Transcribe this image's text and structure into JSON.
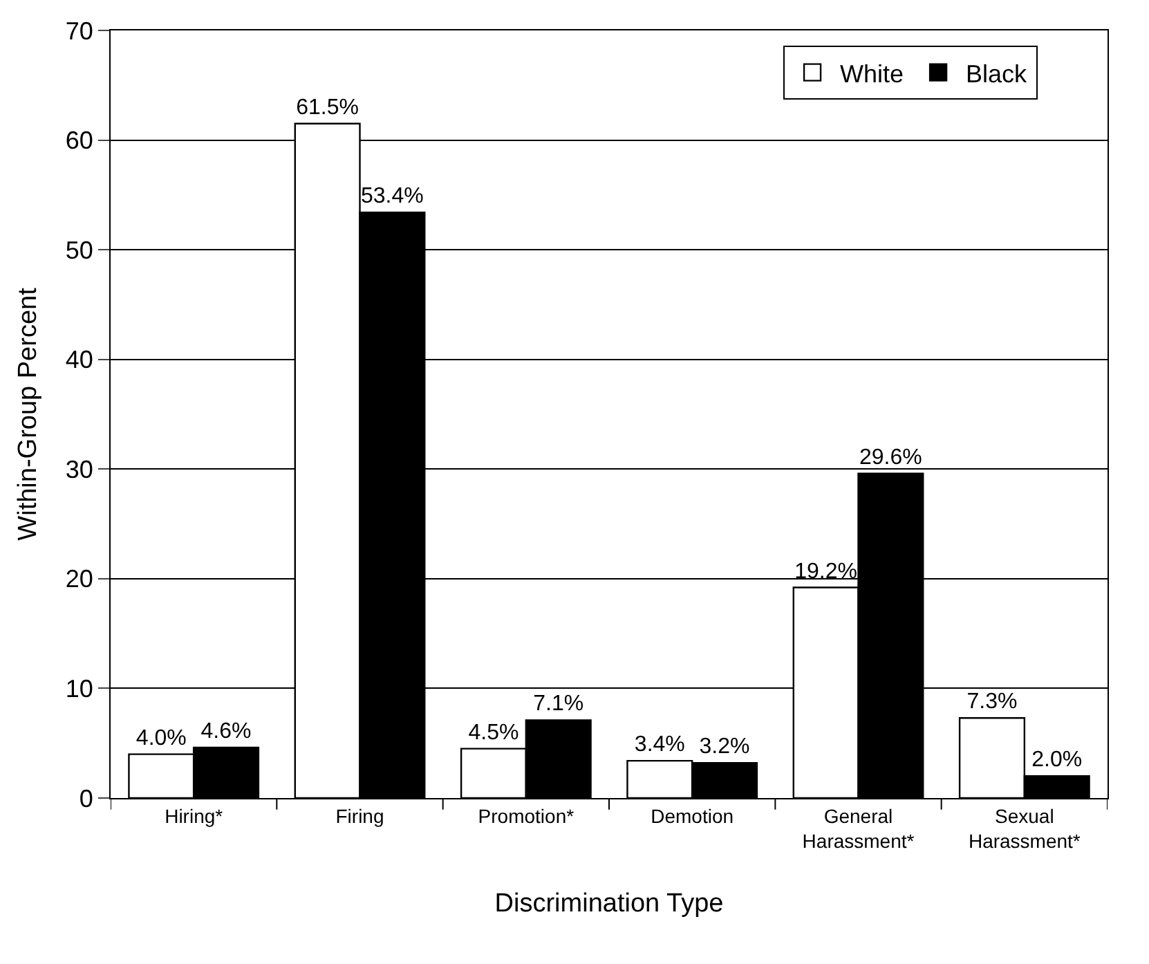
{
  "chart_data": {
    "type": "bar",
    "xlabel": "Discrimination Type",
    "ylabel": "Within-Group Percent",
    "categories": [
      "Hiring*",
      "Firing",
      "Promotion*",
      "Demotion",
      "General Harassment*",
      "Sexual Harassment*"
    ],
    "series": [
      {
        "name": "White",
        "color": "#ffffff",
        "values": [
          4.0,
          61.5,
          4.5,
          3.4,
          19.2,
          7.3
        ],
        "value_labels": [
          "4.0%",
          "61.5%",
          "4.5%",
          "3.4%",
          "19.2%",
          "7.3%"
        ]
      },
      {
        "name": "Black",
        "color": "#000000",
        "values": [
          4.6,
          53.4,
          7.1,
          3.2,
          29.6,
          2.0
        ],
        "value_labels": [
          "4.6%",
          "53.4%",
          "7.1%",
          "3.2%",
          "29.6%",
          "2.0%"
        ]
      }
    ],
    "ylim": [
      0,
      70
    ],
    "yticks": [
      0,
      10,
      20,
      30,
      40,
      50,
      60,
      70
    ],
    "grid": "y",
    "legend": "top right"
  }
}
